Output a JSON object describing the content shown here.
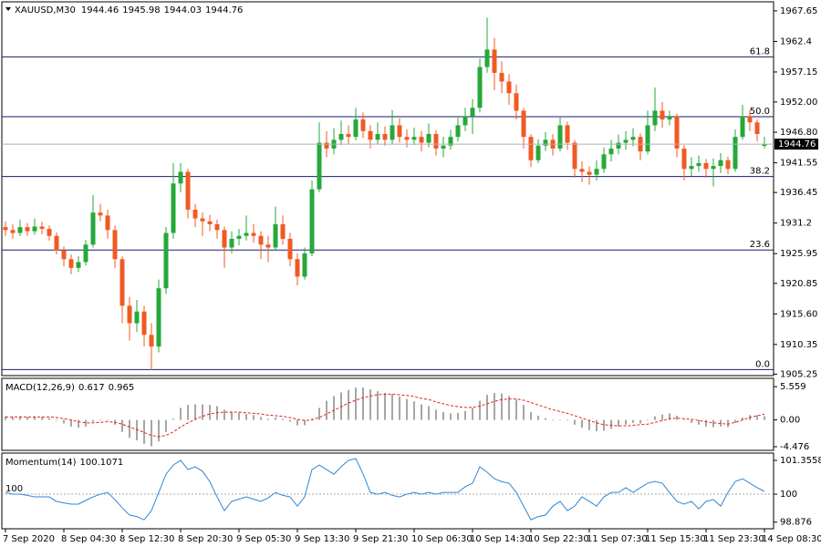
{
  "chart_data": [
    {
      "type": "candlestick",
      "title": "XAUUSD,M30",
      "categories": [
        "7 Sep 2020",
        null,
        null,
        null,
        null,
        null,
        null,
        null,
        "8 Sep 04:30",
        null,
        null,
        null,
        null,
        null,
        null,
        null,
        "8 Sep 12:30",
        null,
        null,
        null,
        null,
        null,
        null,
        null,
        "8 Sep 20:30",
        null,
        null,
        null,
        null,
        null,
        null,
        null,
        "9 Sep 05:30",
        null,
        null,
        null,
        null,
        null,
        null,
        null,
        "9 Sep 13:30",
        null,
        null,
        null,
        null,
        null,
        null,
        null,
        "9 Sep 21:30",
        null,
        null,
        null,
        null,
        null,
        null,
        null,
        "10 Sep 06:30",
        null,
        null,
        null,
        null,
        null,
        null,
        null,
        "10 Sep 14:30",
        null,
        null,
        null,
        null,
        null,
        null,
        null,
        "10 Sep 22:30",
        null,
        null,
        null,
        null,
        null,
        null,
        null,
        "11 Sep 07:30",
        null,
        null,
        null,
        null,
        null,
        null,
        null,
        "11 Sep 15:30",
        null,
        null,
        null,
        null,
        null,
        null,
        null,
        "11 Sep 23:30",
        null,
        null,
        null,
        null,
        null,
        null,
        null,
        "14 Sep 08:30"
      ],
      "open": [
        1930.5,
        1930,
        1929.5,
        1930.5,
        1929.8,
        1930.6,
        1930.2,
        1929,
        1926.5,
        1925,
        1923.5,
        1924.5,
        1927.5,
        1933,
        1932.5,
        1930,
        1925,
        1917,
        1914,
        1916,
        1912,
        1910,
        1920,
        1929.5,
        1938,
        1940,
        1933.5,
        1932,
        1931.5,
        1931,
        1930,
        1927,
        1928.5,
        1929,
        1929.5,
        1929,
        1927.5,
        1927,
        1931,
        1928.5,
        1925,
        1922,
        1926,
        1937,
        1945,
        1944,
        1945.5,
        1946.5,
        1946,
        1949,
        1947,
        1945.5,
        1946.5,
        1945.5,
        1948,
        1946,
        1945.5,
        1946,
        1945,
        1946.5,
        1944,
        1944.5,
        1946,
        1948,
        1949.5,
        1951,
        1958,
        1961,
        1957,
        1955.5,
        1953.5,
        1950.5,
        1946,
        1942,
        1944.5,
        1945.5,
        1944,
        1948,
        1945,
        1940.5,
        1940,
        1939.5,
        1940.5,
        1943,
        1944,
        1945,
        1945.5,
        1946,
        1943.5,
        1948,
        1950.5,
        1949,
        1949.5,
        1944,
        1940.5,
        1941,
        1941.5,
        1940.5,
        1941,
        1942,
        1940.5,
        1946,
        1949.5,
        1948.5,
        1944.46
      ],
      "high": [
        1931.5,
        1931,
        1931.8,
        1931.2,
        1932,
        1931.4,
        1930.8,
        1929.6,
        1927.2,
        1925.8,
        1925.5,
        1928.3,
        1936,
        1934.5,
        1933.5,
        1930.8,
        1925.5,
        1918.5,
        1918,
        1917,
        1914,
        1921.5,
        1930.5,
        1941.5,
        1941.5,
        1940.5,
        1934.5,
        1933,
        1932.6,
        1931.8,
        1930.6,
        1929.8,
        1930.2,
        1932.5,
        1931,
        1929.8,
        1929,
        1934,
        1932.5,
        1929.5,
        1926,
        1927,
        1938.5,
        1948.5,
        1947,
        1947.5,
        1948.8,
        1948,
        1951,
        1950.2,
        1948,
        1948.5,
        1947.8,
        1950.6,
        1949.2,
        1947.3,
        1947.6,
        1947,
        1948.3,
        1947.2,
        1946,
        1947.2,
        1949.3,
        1951,
        1952.5,
        1959.5,
        1966.5,
        1963,
        1959,
        1956.8,
        1955,
        1951,
        1946.5,
        1945.6,
        1946.8,
        1946.5,
        1949.5,
        1948.6,
        1945.5,
        1941.8,
        1941,
        1942,
        1944.2,
        1945.5,
        1946.4,
        1947,
        1947.5,
        1946.6,
        1950.5,
        1954.5,
        1952,
        1950.5,
        1950,
        1944.6,
        1942.5,
        1942.8,
        1942.2,
        1942.3,
        1943.2,
        1942.6,
        1947.3,
        1951.5,
        1950.6,
        1949,
        1945.98
      ],
      "low": [
        1929,
        1928.5,
        1929,
        1929,
        1929.2,
        1929.3,
        1928.2,
        1925.8,
        1923.8,
        1922.4,
        1922.8,
        1923.9,
        1927,
        1931.5,
        1928.5,
        1923.5,
        1914,
        1911,
        1912.5,
        1910,
        1906,
        1909,
        1919,
        1928.5,
        1936.5,
        1932,
        1930.5,
        1929,
        1929.8,
        1928.5,
        1923.5,
        1926,
        1927.4,
        1928.2,
        1927.8,
        1925,
        1924.5,
        1926.5,
        1927.5,
        1923.8,
        1920.5,
        1921.5,
        1925.5,
        1936.5,
        1942.5,
        1943,
        1944.6,
        1944.8,
        1945.4,
        1945.8,
        1944,
        1944.7,
        1944.5,
        1944.8,
        1945,
        1944.2,
        1944.6,
        1943.5,
        1944.2,
        1942.8,
        1942.5,
        1943.8,
        1945.2,
        1947,
        1946.5,
        1950.2,
        1957,
        1954,
        1953.5,
        1951.5,
        1949,
        1944,
        1940.8,
        1941.5,
        1943.6,
        1942.8,
        1943.5,
        1943.8,
        1939,
        1938.2,
        1937.8,
        1938.5,
        1939.8,
        1941.8,
        1943,
        1943.8,
        1944.4,
        1942,
        1943,
        1947,
        1947.6,
        1948,
        1942.5,
        1938.5,
        1939.2,
        1940,
        1939,
        1937.5,
        1939.8,
        1939.6,
        1940,
        1945.5,
        1947,
        1945.2,
        1944.03
      ],
      "close": [
        1930,
        1929.5,
        1930.5,
        1929.8,
        1930.6,
        1930.2,
        1929,
        1926.5,
        1925,
        1923.5,
        1924.5,
        1927.5,
        1933,
        1932.5,
        1930,
        1925,
        1917,
        1914,
        1916,
        1912,
        1910,
        1920,
        1929.5,
        1938,
        1940,
        1933.5,
        1932,
        1931.5,
        1931,
        1930,
        1927,
        1928.5,
        1929,
        1929.5,
        1929,
        1927.5,
        1927,
        1931,
        1928.5,
        1925,
        1922,
        1926,
        1937,
        1945,
        1944,
        1945.5,
        1946.5,
        1946,
        1949,
        1947,
        1945.5,
        1946.5,
        1945.5,
        1948,
        1946,
        1945.5,
        1946,
        1945,
        1946.5,
        1944,
        1944.5,
        1946,
        1948,
        1949.5,
        1951,
        1958,
        1961,
        1957,
        1955.5,
        1953.5,
        1950.5,
        1946,
        1942,
        1944.5,
        1945.5,
        1944,
        1948,
        1945,
        1940.5,
        1940,
        1939.5,
        1940.5,
        1943,
        1944,
        1945,
        1945.5,
        1946,
        1943.5,
        1948,
        1950.5,
        1949,
        1949.5,
        1944,
        1940.5,
        1941,
        1941.5,
        1940.5,
        1941,
        1942,
        1940.5,
        1946,
        1949.5,
        1948.5,
        1946.5,
        1944.76
      ],
      "up_color": "#26a83a",
      "down_color": "#f05a22",
      "levels": [
        {
          "label": "61.8",
          "value": 1959.75
        },
        {
          "label": "50.0",
          "value": 1949.48
        },
        {
          "label": "38.2",
          "value": 1939.2
        },
        {
          "label": "23.6",
          "value": 1926.57
        },
        {
          "label": "0.0",
          "value": 1906.04
        }
      ],
      "level_color": "#1a1a6e",
      "ylim": [
        1905,
        1969.2
      ],
      "yticks": [
        1967.65,
        1962.4,
        1957.15,
        {
          "value": 1952,
          "label": "1952.00"
        },
        {
          "value": 1946.8,
          "label": "1946.80"
        },
        1941.55,
        1936.45,
        1931.2,
        1925.95,
        1920.85,
        {
          "value": 1915.6,
          "label": "1915.60"
        },
        1910.35,
        1905.25
      ]
    },
    {
      "type": "macd",
      "title": "MACD(12,26,9)",
      "main": [
        0.6,
        0.5,
        0.6,
        0.5,
        0.6,
        0.5,
        0.3,
        -0.1,
        -0.6,
        -1.1,
        -1.3,
        -1.1,
        -0.3,
        0.1,
        -0.1,
        -0.8,
        -2.0,
        -3.0,
        -3.4,
        -4.0,
        -4.4,
        -3.6,
        -2.0,
        0.2,
        2.0,
        2.5,
        2.6,
        2.6,
        2.5,
        2.3,
        1.7,
        1.4,
        1.2,
        1.0,
        0.8,
        0.5,
        0.2,
        0.4,
        0.2,
        -0.3,
        -0.9,
        -0.9,
        0.2,
        2.0,
        3.2,
        4.0,
        4.6,
        5.0,
        5.4,
        5.4,
        5.1,
        4.8,
        4.5,
        4.3,
        3.9,
        3.5,
        3.1,
        2.6,
        2.3,
        1.7,
        1.3,
        1.1,
        1.2,
        1.5,
        2.0,
        3.2,
        4.2,
        4.5,
        4.4,
        4.0,
        3.4,
        2.5,
        1.3,
        0.7,
        0.3,
        -0.1,
        0.1,
        -0.1,
        -0.8,
        -1.3,
        -1.7,
        -1.9,
        -1.8,
        -1.5,
        -1.1,
        -0.8,
        -0.5,
        -0.6,
        -0.1,
        0.6,
        0.9,
        1.1,
        0.7,
        -0.1,
        -0.5,
        -0.8,
        -1.1,
        -1.2,
        -1.1,
        -1.2,
        -0.5,
        0.4,
        0.8,
        0.8,
        0.617
      ],
      "signal": [
        0.5,
        0.5,
        0.5,
        0.5,
        0.5,
        0.5,
        0.5,
        0.4,
        0.2,
        0.0,
        -0.3,
        -0.5,
        -0.5,
        -0.4,
        -0.3,
        -0.4,
        -0.7,
        -1.2,
        -1.6,
        -2.1,
        -2.6,
        -2.8,
        -2.6,
        -2.0,
        -1.2,
        -0.5,
        0.1,
        0.6,
        1.0,
        1.2,
        1.3,
        1.3,
        1.3,
        1.2,
        1.1,
        1.0,
        0.8,
        0.7,
        0.6,
        0.4,
        0.1,
        -0.1,
        0.0,
        0.4,
        1.0,
        1.6,
        2.2,
        2.8,
        3.3,
        3.7,
        4.0,
        4.2,
        4.3,
        4.3,
        4.2,
        4.1,
        3.9,
        3.6,
        3.4,
        3.0,
        2.7,
        2.4,
        2.2,
        2.1,
        2.1,
        2.3,
        2.7,
        3.1,
        3.4,
        3.5,
        3.5,
        3.3,
        2.9,
        2.5,
        2.1,
        1.7,
        1.4,
        1.1,
        0.7,
        0.3,
        -0.1,
        -0.5,
        -0.8,
        -0.9,
        -1.0,
        -1.0,
        -0.9,
        -0.8,
        -0.7,
        -0.4,
        -0.1,
        0.2,
        0.3,
        0.2,
        0.1,
        -0.1,
        -0.3,
        -0.5,
        -0.6,
        -0.7,
        -0.4,
        0.0,
        0.4,
        0.7,
        0.965
      ],
      "hist_color": "#a6a6a6",
      "signal_color": "#e02020",
      "ylim": [
        -5.09,
        6.95
      ],
      "yticks": [
        5.559,
        {
          "value": 0,
          "label": "0.00"
        },
        -4.476
      ]
    },
    {
      "type": "line",
      "title": "Momentum(14)",
      "values": [
        100.07,
        100.0,
        100.0,
        99.95,
        99.89,
        99.89,
        99.89,
        99.71,
        99.65,
        99.6,
        99.6,
        99.75,
        99.89,
        100.0,
        100.07,
        99.78,
        99.45,
        99.16,
        99.1,
        98.97,
        99.34,
        100.07,
        100.8,
        101.17,
        101.36,
        100.99,
        101.1,
        100.92,
        100.5,
        99.89,
        99.34,
        99.71,
        99.8,
        99.89,
        99.8,
        99.71,
        99.85,
        100.07,
        99.95,
        99.89,
        99.52,
        99.89,
        100.99,
        101.17,
        100.99,
        100.8,
        101.1,
        101.36,
        101.43,
        100.81,
        100.07,
        100.0,
        100.07,
        99.95,
        99.89,
        100.0,
        100.07,
        100.0,
        100.07,
        100.0,
        100.07,
        100.07,
        100.07,
        100.3,
        100.44,
        101.1,
        100.88,
        100.62,
        100.5,
        100.44,
        100.07,
        99.52,
        98.97,
        99.1,
        99.16,
        99.52,
        99.71,
        99.34,
        99.52,
        99.89,
        99.71,
        99.52,
        99.89,
        100.07,
        100.07,
        100.26,
        100.07,
        100.26,
        100.44,
        100.51,
        100.44,
        100.07,
        99.71,
        99.6,
        99.71,
        99.41,
        99.71,
        99.78,
        99.52,
        100.07,
        100.51,
        100.62,
        100.44,
        100.26,
        100.1071
      ],
      "color": "#2f86d6",
      "level": 100,
      "ylim": [
        98.61,
        101.65
      ],
      "yticks": [
        101.3558,
        100,
        98.876
      ]
    }
  ]
}
